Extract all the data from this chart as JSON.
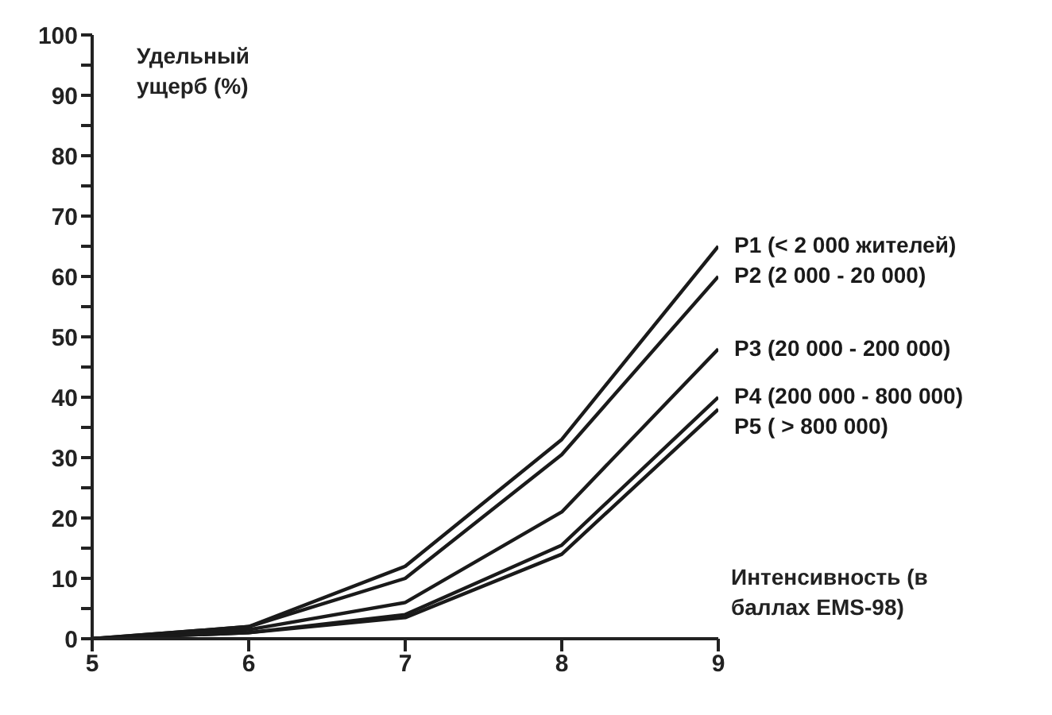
{
  "chart_data": {
    "type": "line",
    "ylabel": "Удельный ущерб (%)",
    "xlabel": "Интенсивность (в баллах EMS-98)",
    "x": [
      5,
      6,
      7,
      8,
      9
    ],
    "series": [
      {
        "name": "P1 (< 2 000 жителей)",
        "color": "#1a1a1a",
        "values": [
          0,
          2,
          12,
          33,
          65
        ]
      },
      {
        "name": "P2 (2 000 - 20 000)",
        "color": "#1a1a1a",
        "values": [
          0,
          2,
          10,
          30.5,
          60
        ]
      },
      {
        "name": "P3 (20 000 - 200 000)",
        "color": "#1a1a1a",
        "values": [
          0,
          1.5,
          6,
          21,
          48
        ]
      },
      {
        "name": "P4 (200 000 - 800 000)",
        "color": "#1a1a1a",
        "values": [
          0,
          1,
          4,
          15.5,
          40
        ]
      },
      {
        "name": "P5 ( > 800 000)",
        "color": "#1a1a1a",
        "values": [
          0,
          1,
          3.5,
          14,
          38
        ]
      }
    ],
    "xlim": [
      5,
      9
    ],
    "xticks": [
      5,
      6,
      7,
      8,
      9
    ],
    "ylim": [
      0,
      100
    ],
    "yticks": [
      0,
      {
        "value": 5,
        "label": null
      },
      10,
      {
        "value": 15,
        "label": null
      },
      20,
      {
        "value": 25,
        "label": null
      },
      30,
      {
        "value": 35,
        "label": null
      },
      40,
      {
        "value": 45,
        "label": null
      },
      50,
      {
        "value": 55,
        "label": null
      },
      60,
      {
        "value": 65,
        "label": null
      },
      70,
      {
        "value": 75,
        "label": null
      },
      80,
      {
        "value": 85,
        "label": null
      },
      90,
      {
        "value": 95,
        "label": null
      },
      100
    ],
    "grid": false,
    "marker": "none",
    "line_style": "solid"
  }
}
